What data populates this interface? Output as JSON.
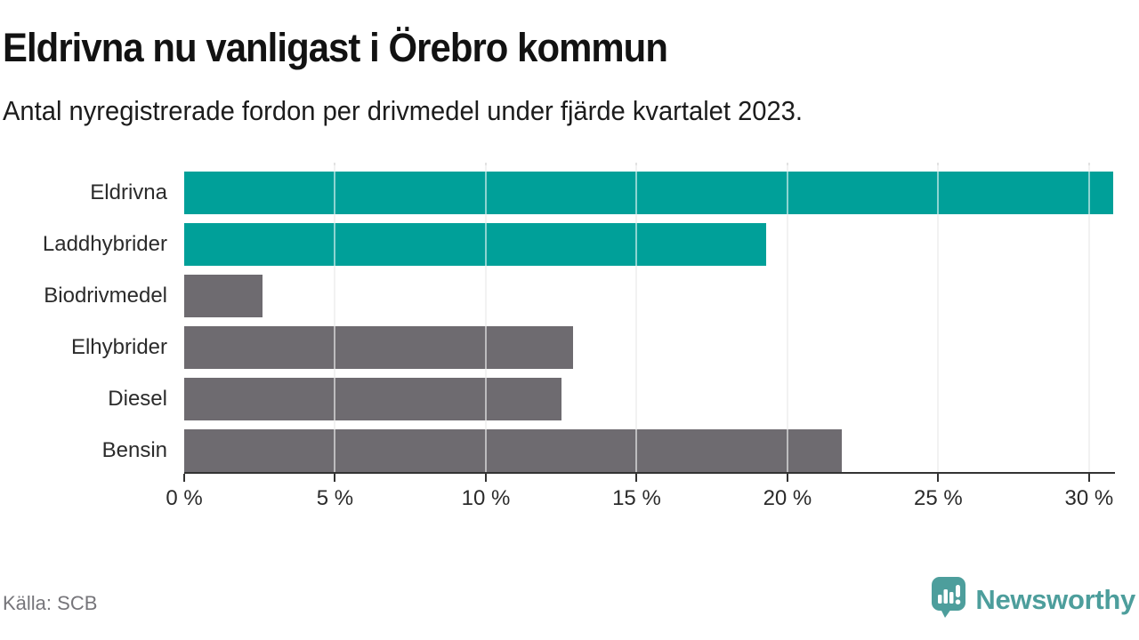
{
  "title": "Eldrivna nu vanligast i Örebro kommun",
  "subtitle": "Antal nyregistrerade fordon per drivmedel under fjärde kvartalet 2023.",
  "source": "Källa: SCB",
  "logo": {
    "brand": "Newsworthy",
    "icon": "newsworthy-speech-bubble-bar-chart-icon"
  },
  "colors": {
    "accent_teal": "#00a099",
    "bar_gray": "#6e6b70",
    "logo_teal": "#4d9e9c",
    "axis": "#333333",
    "gridline": "#e2e2e2",
    "title_text": "#121212",
    "label_text": "#2b2b2b",
    "source_text": "#76757a"
  },
  "chart_data": {
    "type": "bar",
    "orientation": "horizontal",
    "title": "Eldrivna nu vanligast i Örebro kommun",
    "subtitle": "Antal nyregistrerade fordon per drivmedel under fjärde kvartalet 2023.",
    "source": "Källa: SCB",
    "categories": [
      "Eldrivna",
      "Laddhybrider",
      "Biodrivmedel",
      "Elhybrider",
      "Diesel",
      "Bensin"
    ],
    "values": [
      30.8,
      19.3,
      2.6,
      12.9,
      12.5,
      21.8
    ],
    "highlighted": [
      true,
      true,
      false,
      false,
      false,
      false
    ],
    "unit": "%",
    "xlim": [
      0,
      30.8
    ],
    "x_ticks": [
      0,
      5,
      10,
      15,
      20,
      25,
      30
    ],
    "x_tick_labels": [
      "0 %",
      "5 %",
      "10 %",
      "15 %",
      "20 %",
      "25 %",
      "30 %"
    ],
    "grid": "vertical",
    "legend": "none"
  }
}
